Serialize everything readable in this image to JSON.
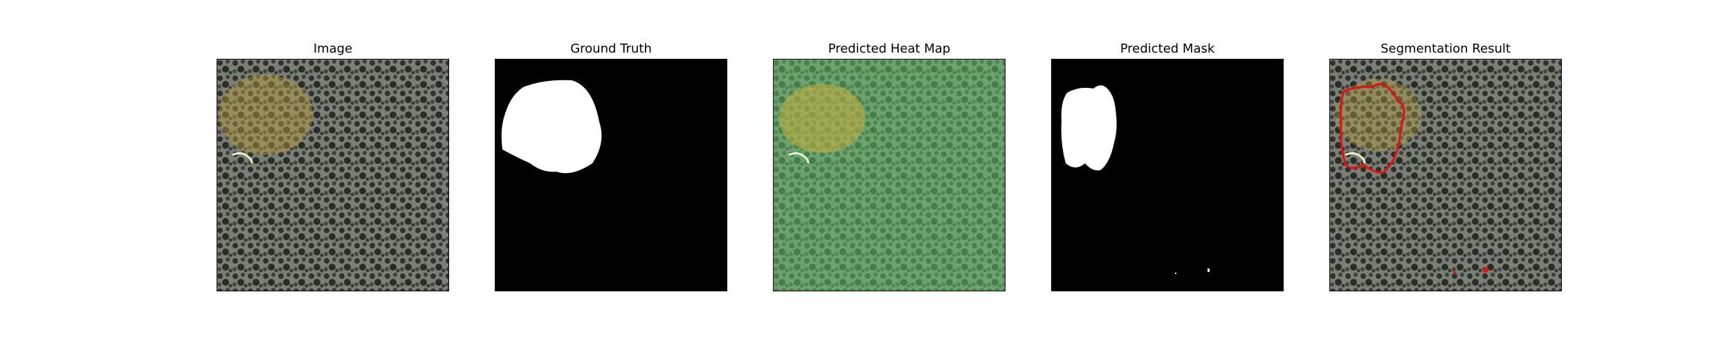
{
  "figure": {
    "panels": [
      {
        "title": "Image",
        "kind": "photo"
      },
      {
        "title": "Ground Truth",
        "kind": "binary-mask"
      },
      {
        "title": "Predicted Heat Map",
        "kind": "heatmap-overlay"
      },
      {
        "title": "Predicted Mask",
        "kind": "binary-mask"
      },
      {
        "title": "Segmentation Result",
        "kind": "contour-overlay"
      }
    ]
  },
  "colors": {
    "background": "#ffffff",
    "mask_fill": "#ffffff",
    "mask_background": "#000000",
    "heatmap_tint": "#5fbf6a",
    "heatmap_hot": "#c8b040",
    "contour": "#e01010"
  }
}
